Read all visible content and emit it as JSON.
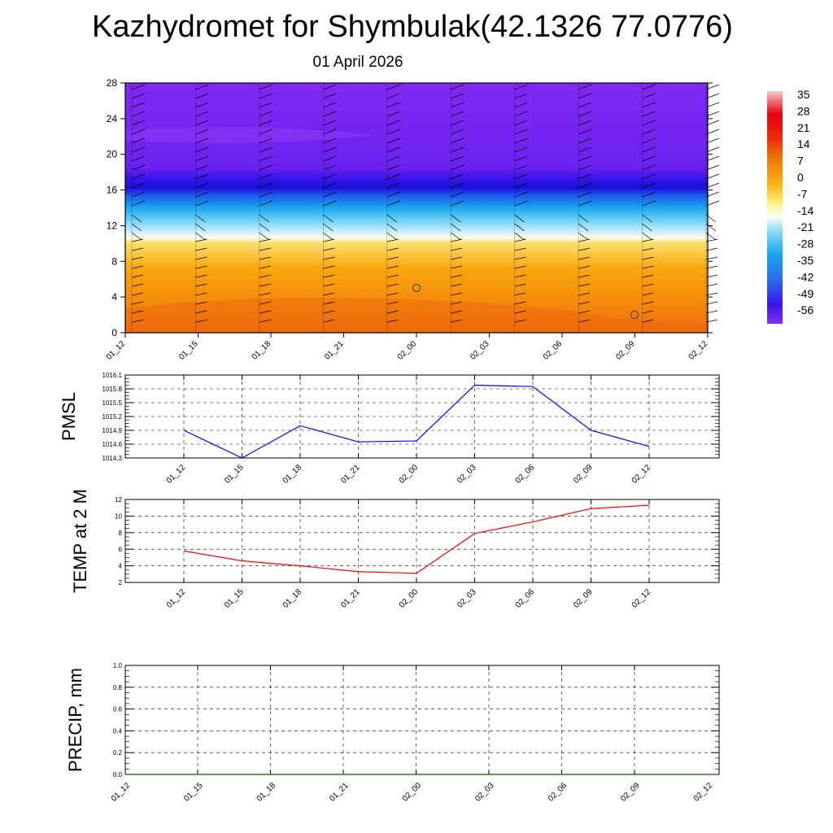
{
  "title": "Kazhydromet for Shymbulak(42.1326 77.0776)",
  "subtitle": "01 April 2026",
  "colorbar": {
    "labels": [
      "35",
      "28",
      "21",
      "14",
      "7",
      "0",
      "-7",
      "-14",
      "-21",
      "-28",
      "-35",
      "-42",
      "-49",
      "-56"
    ]
  },
  "chart_data": [
    {
      "type": "heatmap",
      "title": "",
      "x_categories": [
        "01_12",
        "01_15",
        "01_18",
        "01_21",
        "02_00",
        "02_03",
        "02_06",
        "02_09",
        "02_12"
      ],
      "y_ticks": [
        0,
        4,
        8,
        12,
        16,
        20,
        24,
        28
      ],
      "ylim": [
        0,
        28
      ],
      "colorbar_range": [
        -56,
        35
      ],
      "description_bands": [
        {
          "y_range": [
            0,
            11
          ],
          "value_range": [
            7,
            1
          ]
        },
        {
          "y_range": [
            11,
            18
          ],
          "value_range": [
            -14,
            -56
          ]
        },
        {
          "y_range": [
            18,
            28
          ],
          "value_range": [
            -56,
            -60
          ]
        }
      ],
      "wind_barbs": true,
      "markers": [
        {
          "x": "02_00",
          "y": 5
        },
        {
          "x": "02_09",
          "y": 2
        }
      ]
    },
    {
      "type": "line",
      "ylabel": "PMSL",
      "x": [
        "01_12",
        "01_15",
        "01_18",
        "01_21",
        "02_00",
        "02_03",
        "02_06",
        "02_09",
        "02_12"
      ],
      "values": [
        1014.9,
        1014.3,
        1015.0,
        1014.65,
        1014.67,
        1015.88,
        1015.85,
        1014.9,
        1014.55
      ],
      "y_ticks": [
        "1016.1",
        "1015.8",
        "1015.5",
        "1015.2",
        "1014.9",
        "1014.6",
        "1014.3"
      ],
      "ylim": [
        1014.3,
        1016.1
      ],
      "color": "#0000ff",
      "grid": true
    },
    {
      "type": "line",
      "ylabel": "TEMP at 2 M",
      "x": [
        "01_12",
        "01_15",
        "01_18",
        "01_21",
        "02_00",
        "02_03",
        "02_06",
        "02_09",
        "02_12"
      ],
      "values": [
        5.8,
        4.6,
        4.0,
        3.3,
        3.1,
        7.9,
        9.3,
        10.9,
        11.3
      ],
      "y_ticks": [
        "12",
        "10",
        "8",
        "6",
        "4",
        "2"
      ],
      "ylim": [
        2,
        12
      ],
      "color": "#ff0000",
      "grid": true
    },
    {
      "type": "line",
      "ylabel": "PRECIP, mm",
      "x": [
        "01_12",
        "01_15",
        "01_18",
        "01_21",
        "02_00",
        "02_03",
        "02_06",
        "02_09",
        "02_12"
      ],
      "values": [
        0,
        0,
        0,
        0,
        0,
        0,
        0,
        0,
        0
      ],
      "y_ticks": [
        "1.0",
        "0.8",
        "0.6",
        "0.4",
        "0.2",
        "0.0"
      ],
      "ylim": [
        0,
        1
      ],
      "color": "#006400",
      "grid": true
    }
  ]
}
